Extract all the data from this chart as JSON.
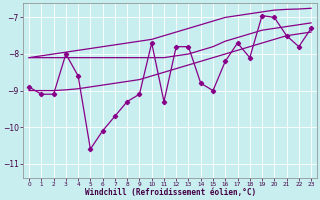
{
  "xlabel": "Windchill (Refroidissement éolien,°C)",
  "background_color": "#c8eef0",
  "grid_color": "#b0dde0",
  "line_color": "#880088",
  "x_hours": [
    0,
    1,
    2,
    3,
    4,
    5,
    6,
    7,
    8,
    9,
    10,
    11,
    12,
    13,
    14,
    15,
    16,
    17,
    18,
    19,
    20,
    21,
    22,
    23
  ],
  "y_windchill": [
    -8.9,
    -9.1,
    -9.1,
    -8.0,
    -8.6,
    -10.6,
    -10.1,
    -9.7,
    -9.3,
    -9.1,
    -7.7,
    -9.3,
    -7.8,
    -7.8,
    -8.8,
    -9.0,
    -8.2,
    -7.7,
    -8.1,
    -6.95,
    -7.0,
    -7.5,
    -7.8,
    -7.3
  ],
  "y_smooth_upper": [
    -8.1,
    -8.05,
    -8.0,
    -7.95,
    -7.9,
    -7.85,
    -7.8,
    -7.75,
    -7.7,
    -7.65,
    -7.6,
    -7.5,
    -7.4,
    -7.3,
    -7.2,
    -7.1,
    -7.0,
    -6.95,
    -6.9,
    -6.85,
    -6.8,
    -6.78,
    -6.77,
    -6.75
  ],
  "y_smooth_lower": [
    -9.0,
    -9.0,
    -9.0,
    -8.98,
    -8.95,
    -8.9,
    -8.85,
    -8.8,
    -8.75,
    -8.7,
    -8.6,
    -8.5,
    -8.4,
    -8.3,
    -8.2,
    -8.1,
    -8.0,
    -7.9,
    -7.8,
    -7.7,
    -7.6,
    -7.5,
    -7.45,
    -7.4
  ],
  "y_smooth_mid": [
    -8.1,
    -8.1,
    -8.1,
    -8.1,
    -8.1,
    -8.1,
    -8.1,
    -8.1,
    -8.1,
    -8.1,
    -8.1,
    -8.1,
    -8.05,
    -8.0,
    -7.9,
    -7.8,
    -7.65,
    -7.55,
    -7.45,
    -7.35,
    -7.3,
    -7.25,
    -7.2,
    -7.15
  ],
  "ylim": [
    -11.4,
    -6.6
  ],
  "yticks": [
    -11,
    -10,
    -9,
    -8,
    -7
  ],
  "xlim": [
    -0.5,
    23.5
  ]
}
